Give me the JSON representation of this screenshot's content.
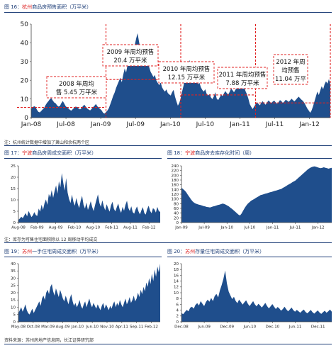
{
  "chart_data": [
    {
      "type": "area",
      "title_prefix": "图 16：",
      "title_city": "杭州",
      "title_rest": "商品房预售面积（万平米）",
      "x_ticks": [
        "Jan-08",
        "Jul-08",
        "Jan-09",
        "Jul-09",
        "Jan-10",
        "Jul-10",
        "Jan-11",
        "Jul-11",
        "Jan-12"
      ],
      "y_ticks": [
        "0",
        "10",
        "20",
        "30",
        "40",
        "50"
      ],
      "ylim": [
        0,
        50
      ],
      "series_color": "#1f4e8c",
      "annotation_color": "#e02020",
      "weekly_values": [
        4.8,
        5.5,
        6.1,
        5.8,
        4.2,
        3.1,
        2.8,
        3.6,
        4.4,
        5.2,
        6.7,
        7.9,
        8.8,
        9.9,
        10.4,
        9.2,
        8.1,
        7.7,
        6.6,
        5.9,
        6.3,
        7.8,
        8.9,
        7.5,
        6.1,
        5.4,
        4.9,
        4.1,
        3.8,
        4.6,
        5.3,
        6.0,
        5.5,
        4.8,
        4.4,
        5.1,
        6.2,
        6.9,
        5.8,
        4.9,
        4.3,
        3.9,
        4.7,
        5.6,
        6.4,
        7.3,
        6.1,
        5.2,
        4.6,
        3.9,
        2.6,
        2.2,
        2.9,
        3.8,
        5.1,
        7.2,
        9.3,
        11.6,
        13.4,
        15.8,
        17.7,
        19.6,
        21.4,
        18.9,
        22.8,
        26.3,
        24.1,
        28.2,
        31.9,
        29.4,
        33.7,
        36.2,
        38.8,
        42.3,
        45.1,
        40.4,
        36.7,
        39.2,
        35.8,
        31.4,
        33.9,
        29.8,
        27.1,
        24.6,
        23.2,
        21.7,
        22.8,
        19.9,
        18.6,
        17.3,
        18.9,
        16.2,
        14.8,
        13.9,
        15.1,
        13.2,
        12.4,
        11.8,
        13.6,
        14.9,
        11.2,
        8.7,
        6.4,
        7.9,
        10.6,
        14.1,
        17.4,
        21.2,
        24.7,
        27.9,
        30.8,
        28.4,
        25.1,
        23.2,
        20.8,
        19.6,
        17.9,
        18.6,
        16.2,
        14.8,
        13.9,
        15.2,
        12.8,
        11.9,
        12.6,
        10.8,
        9.9,
        11.4,
        13.6,
        10.2,
        9.4,
        10.8,
        12.1,
        11.6,
        12.9,
        14.2,
        13.1,
        12.4,
        13.8,
        15.6,
        14.7,
        13.6,
        14.9,
        16.1,
        17.2,
        19.4,
        21.8,
        19.6,
        16.8,
        14.2,
        12.6,
        10.1,
        7.2,
        5.8,
        4.6,
        5.9,
        7.1,
        8.2,
        7.4,
        6.6,
        7.9,
        8.8,
        7.6,
        6.9,
        8.1,
        9.2,
        8.4,
        7.7,
        8.6,
        9.1,
        8.2,
        7.4,
        8.3,
        9.4,
        8.8,
        7.9,
        8.6,
        9.6,
        9.1,
        8.4,
        9.2,
        10.1,
        9.4,
        8.7,
        9.5,
        10.4,
        11.2,
        10.3,
        9.6,
        8.9,
        7.8,
        6.4,
        4.9,
        3.8,
        2.6,
        3.9,
        6.2,
        8.8,
        11.4,
        13.9,
        12.1,
        14.6,
        16.8,
        15.2,
        17.9,
        19.4,
        18.2,
        20.6,
        17.8
      ],
      "annotations": [
        {
          "lines": [
            "2008 年周均",
            "售 5.45 万平米"
          ],
          "avg": 5.45
        },
        {
          "lines": [
            "2009 年周均预售",
            "20.4 万平米"
          ],
          "avg": 20.4
        },
        {
          "lines": [
            "2010 年周均预售",
            "12.15 万平米"
          ],
          "avg": 12.15
        },
        {
          "lines": [
            "2011 年周均预售",
            "7.88 万平米"
          ],
          "avg": 7.88
        },
        {
          "lines": [
            "2012 年周",
            "均预售",
            "11.04 万平"
          ],
          "avg": 11.04
        }
      ]
    },
    {
      "type": "area",
      "title_prefix": "图 17：",
      "title_city": "宁波",
      "title_rest": "商品房周成交面积（万平米）",
      "x_ticks": [
        "Aug-08",
        "Feb-09",
        "Aug-09",
        "Feb-10",
        "Aug-10",
        "Feb-11",
        "Aug-11",
        "Feb-12"
      ],
      "y_ticks": [
        "0",
        "5",
        "10",
        "15",
        "20",
        "25"
      ],
      "ylim": [
        0,
        25
      ],
      "series_color": "#1f4e8c",
      "values": [
        1.2,
        1.8,
        2.6,
        1.9,
        3.1,
        4.2,
        2.7,
        5.1,
        3.8,
        2.4,
        3.2,
        4.6,
        3.3,
        2.9,
        6.2,
        4.8,
        7.9,
        5.6,
        8.4,
        10.2,
        7.8,
        12.6,
        11.1,
        14.3,
        10.9,
        13.8,
        16.4,
        12.7,
        18.2,
        15.6,
        21.8,
        17.4,
        14.1,
        19.6,
        13.2,
        10.4,
        8.6,
        12.3,
        9.1,
        7.4,
        10.8,
        8.2,
        6.4,
        9.6,
        11.8,
        7.9,
        6.2,
        8.8,
        5.6,
        7.3,
        9.4,
        6.8,
        5.1,
        7.8,
        10.2,
        12.4,
        8.6,
        6.9,
        9.8,
        7.2,
        5.4,
        8.1,
        6.3,
        4.8,
        7.6,
        9.2,
        6.1,
        4.9,
        6.8,
        8.4,
        5.7,
        4.3,
        6.9,
        5.2,
        7.8,
        9.6,
        6.4,
        5.1,
        7.2,
        4.6,
        3.9,
        5.8,
        7.1,
        4.9,
        3.6,
        5.4,
        6.8,
        4.2,
        3.5,
        5.9,
        7.4,
        5.2,
        4.1,
        6.3,
        5.8,
        4.4,
        6.9,
        5.1,
        4.7
      ]
    },
    {
      "type": "area",
      "title_prefix": "图 18：",
      "title_city": "宁波",
      "title_rest": "商品房去库存化时间（周）",
      "x_ticks": [
        "Jan-09",
        "Jul-09",
        "Jan-10",
        "Jul-10",
        "Jan-11",
        "Jul-11",
        "Jan-12"
      ],
      "y_ticks": [
        "0",
        "20",
        "40",
        "60",
        "80",
        "100",
        "120",
        "140",
        "160",
        "180",
        "200",
        "220",
        "240"
      ],
      "ylim": [
        0,
        240
      ],
      "series_color": "#1f4e8c",
      "values": [
        148,
        142,
        136,
        128,
        118,
        108,
        98,
        90,
        84,
        80,
        78,
        76,
        74,
        72,
        70,
        68,
        66,
        65,
        64,
        66,
        68,
        70,
        72,
        74,
        76,
        78,
        80,
        79,
        76,
        72,
        68,
        62,
        58,
        52,
        46,
        40,
        34,
        30,
        38,
        50,
        62,
        72,
        80,
        86,
        92,
        96,
        100,
        104,
        108,
        112,
        116,
        118,
        120,
        122,
        124,
        126,
        128,
        130,
        132,
        134,
        136,
        138,
        140,
        142,
        146,
        150,
        154,
        158,
        162,
        166,
        170,
        174,
        178,
        184,
        190,
        196,
        202,
        208,
        214,
        220,
        226,
        230,
        234,
        236,
        238,
        236,
        234,
        232,
        230,
        232,
        234,
        232,
        230,
        228,
        230,
        232
      ]
    },
    {
      "type": "area",
      "title_prefix": "图 19：",
      "title_city": "苏州",
      "title_rest": "一手住宅周成交面积（万平米）",
      "x_ticks": [
        "May-08",
        "Oct-08",
        "Mar-09",
        "Aug-09",
        "Jan-10",
        "Jun-10",
        "Nov-10",
        "Apr-11",
        "Sep-11",
        "Feb-12"
      ],
      "y_ticks": [
        "0",
        "5",
        "10",
        "15",
        "20",
        "25",
        "30",
        "35",
        "40"
      ],
      "ylim": [
        0,
        40
      ],
      "series_color": "#1f4e8c",
      "values": [
        6,
        8,
        10,
        7,
        9,
        12,
        8,
        6,
        5,
        7,
        9,
        6,
        8,
        10,
        12,
        14,
        11,
        16,
        18,
        15,
        20,
        22,
        19,
        24,
        26,
        21,
        18,
        23,
        20,
        17,
        22,
        19,
        16,
        14,
        18,
        15,
        12,
        16,
        19,
        14,
        11,
        13,
        10,
        12,
        15,
        11,
        9,
        12,
        14,
        10,
        13,
        16,
        12,
        10,
        13,
        11,
        9,
        12,
        10,
        8,
        11,
        13,
        9,
        12,
        10,
        8,
        11,
        9,
        12,
        14,
        10,
        13,
        11,
        15,
        12,
        10,
        13,
        16,
        12,
        14,
        17,
        13,
        15,
        18,
        14,
        16,
        20,
        17,
        22,
        19,
        24,
        21,
        27,
        24,
        30,
        26,
        33,
        28,
        36,
        31,
        38,
        34,
        40
      ]
    },
    {
      "type": "area",
      "title_prefix": "图 20：",
      "title_city": "苏州",
      "title_rest": "存量住宅周成交面积（万平米）",
      "x_ticks": [
        "Dec-08",
        "Jun-09",
        "Dec-09",
        "Jun-10",
        "Dec-10",
        "Jun-11",
        "Dec-11"
      ],
      "y_ticks": [
        "0",
        "2",
        "4",
        "6",
        "8",
        "10",
        "12",
        "14",
        "16",
        "18",
        "20"
      ],
      "ylim": [
        0,
        20
      ],
      "series_color": "#1f4e8c",
      "values": [
        3,
        2.6,
        3.4,
        4.1,
        3.6,
        4.8,
        5.2,
        4.5,
        5.8,
        6.4,
        5.6,
        7.1,
        6.2,
        5.4,
        6.8,
        7.6,
        6.9,
        8.2,
        7.1,
        8.8,
        9.6,
        8.4,
        10.8,
        12.6,
        14.8,
        17.6,
        13.2,
        10.4,
        9.1,
        7.8,
        8.6,
        7.2,
        6.4,
        7.6,
        6.8,
        5.9,
        6.7,
        7.4,
        6.2,
        5.4,
        6.3,
        7.1,
        6.0,
        5.3,
        6.2,
        5.6,
        4.9,
        5.7,
        6.5,
        5.4,
        4.6,
        5.3,
        6.1,
        5.2,
        4.4,
        5.1,
        4.6,
        3.8,
        4.4,
        5.2,
        4.3,
        3.6,
        4.2,
        4.9,
        4.0,
        3.5,
        4.1,
        3.6,
        3.1,
        3.7,
        4.2,
        3.4,
        2.9,
        3.5,
        4.1,
        3.3,
        2.8,
        3.4,
        3.9,
        3.2,
        2.7,
        3.3,
        3.8,
        3.1,
        3.6,
        4.2,
        3.5
      ]
    }
  ],
  "notes": {
    "n1": "注：杭州统计数据中增加了萧山和余杭两个区",
    "n2": "注：库存为可售住宅面积除以 12 周移动平均成交",
    "source": "资料来源：苏州房地产信息网，长江证券研究部"
  }
}
